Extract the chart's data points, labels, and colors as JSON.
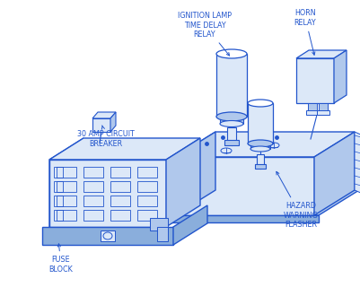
{
  "bg_color": "#ffffff",
  "draw_color": "#2255cc",
  "fill_light": "#dce8f8",
  "fill_mid": "#b0c8ec",
  "fill_dark": "#8aaedc",
  "labels": {
    "ignition": "IGNITION LAMP\nTIME DELAY\nRELAY",
    "horn": "HORN\nRELAY",
    "breaker": "30 AMP CIRCUIT\nBREAKER",
    "hazard": "HAZARD\nWARNING\nFLASHER",
    "fuse": "FUSE\nBLOCK"
  }
}
